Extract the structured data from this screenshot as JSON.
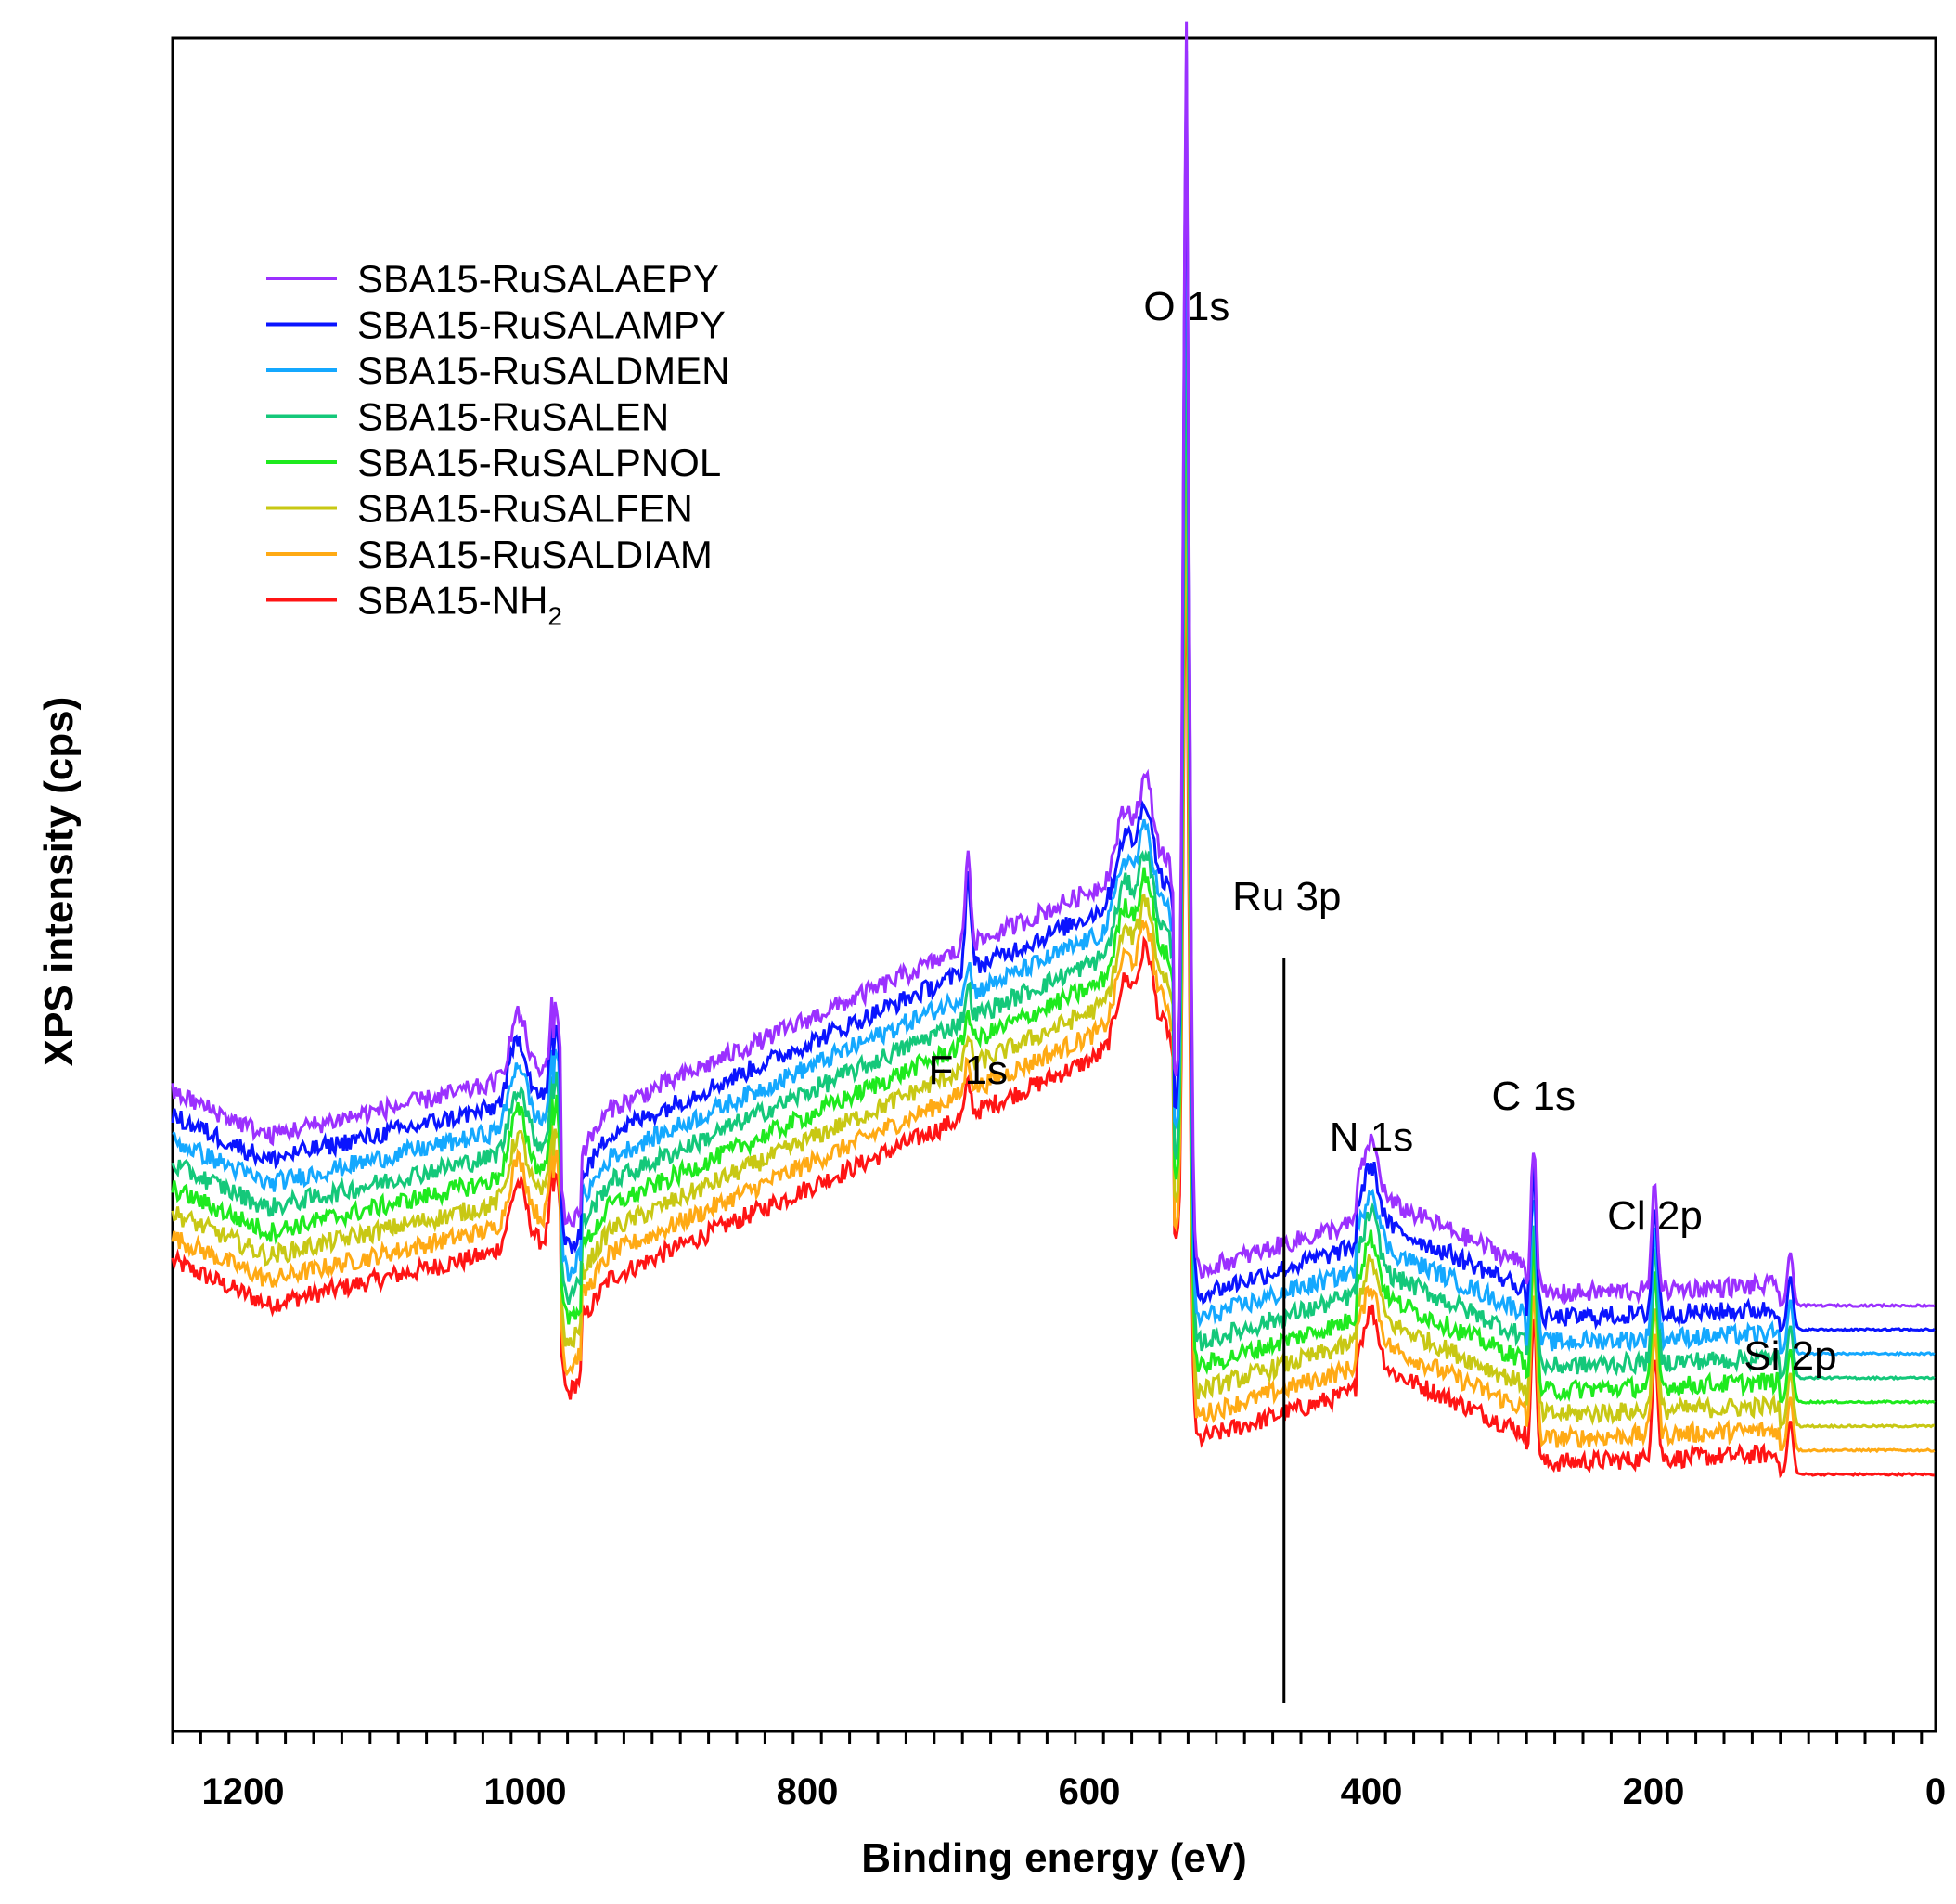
{
  "chart_data": {
    "type": "line",
    "title": "",
    "xlabel": "Binding energy (eV)",
    "ylabel": "XPS intensity (cps)",
    "xlim": [
      1250,
      0
    ],
    "x_reversed": true,
    "x_ticks": [
      1200,
      1000,
      800,
      600,
      400,
      200,
      0
    ],
    "x_tick_labels": [
      "1200",
      "1000",
      "800",
      "600",
      "400",
      "200",
      "0"
    ],
    "x_minor_step": 20,
    "y_ticks_shown": false,
    "legend_position": "top-left",
    "series": [
      {
        "name": "SBA15-RuSALAEPY",
        "color": "#9b30ff",
        "offset": 7
      },
      {
        "name": "SBA15-RuSALAMPY",
        "color": "#0a14ff",
        "offset": 6
      },
      {
        "name": "SBA15-RuSALDMEN",
        "color": "#14a8ff",
        "offset": 5
      },
      {
        "name": "SBA15-RuSALEN",
        "color": "#14c87a",
        "offset": 4
      },
      {
        "name": "SBA15-RuSALPNOL",
        "color": "#1eea1e",
        "offset": 3
      },
      {
        "name": "SBA15-RuSALFEN",
        "color": "#c8c814",
        "offset": 2
      },
      {
        "name": "SBA15-RuSALDIAM",
        "color": "#ffaa14",
        "offset": 1
      },
      {
        "name": "SBA15-NH",
        "name_subscript": "2",
        "color": "#ff1414",
        "offset": 0
      }
    ],
    "annotations": [
      {
        "text": "O 1s",
        "x": 531
      },
      {
        "text": "F 1s",
        "x": 686
      },
      {
        "text": "Ru 3p",
        "x": 460
      },
      {
        "text": "N 1s",
        "x": 400
      },
      {
        "text": "C 1s",
        "x": 285
      },
      {
        "text": "Cl 2p",
        "x": 199
      },
      {
        "text": "Si 2p",
        "x": 103
      }
    ],
    "marker_line": {
      "x": 462,
      "label": "Ru 3p"
    }
  }
}
